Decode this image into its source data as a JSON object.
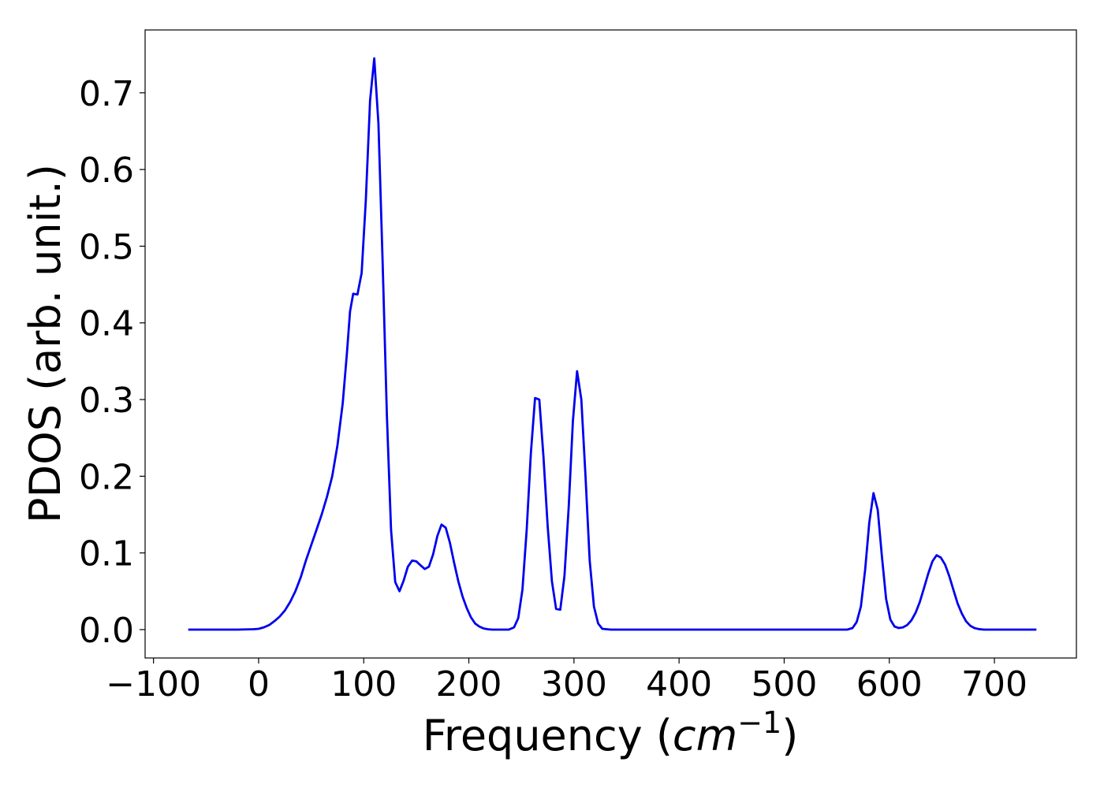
{
  "chart_data": {
    "type": "line",
    "title": "",
    "xlabel": "Frequency (",
    "xlabel_math": "cm",
    "xlabel_sup": "−1",
    "xlabel_close": ")",
    "ylabel": "PDOS (arb. unit.)",
    "xlim": [
      -108,
      778
    ],
    "ylim": [
      -0.037,
      0.782
    ],
    "grid": false,
    "x_ticks": [
      -100,
      0,
      100,
      200,
      300,
      400,
      500,
      600,
      700
    ],
    "x_tick_labels": [
      "−100",
      "0",
      "100",
      "200",
      "300",
      "400",
      "500",
      "600",
      "700"
    ],
    "y_ticks": [
      0.0,
      0.1,
      0.2,
      0.3,
      0.4,
      0.5,
      0.6,
      0.7
    ],
    "y_tick_labels": [
      "0.0",
      "0.1",
      "0.2",
      "0.3",
      "0.4",
      "0.5",
      "0.6",
      "0.7"
    ],
    "series": [
      {
        "color": "#0000ee",
        "x": [
          -67,
          -40,
          -20,
          -5,
          0,
          5,
          10,
          15,
          20,
          25,
          30,
          35,
          40,
          45,
          50,
          55,
          60,
          65,
          70,
          75,
          80,
          84,
          87,
          90,
          94,
          98,
          102,
          106,
          110,
          114,
          118,
          122,
          126,
          130,
          134,
          138,
          142,
          146,
          150,
          154,
          158,
          162,
          166,
          170,
          174,
          178,
          182,
          186,
          190,
          194,
          198,
          202,
          206,
          210,
          214,
          218,
          222,
          230,
          238,
          243,
          247,
          251,
          255,
          259,
          263,
          267,
          271,
          275,
          279,
          283,
          287,
          291,
          295,
          299,
          303,
          307,
          311,
          315,
          319,
          323,
          327,
          335,
          560,
          565,
          569,
          573,
          577,
          581,
          585,
          589,
          593,
          597,
          601,
          605,
          609,
          613,
          617,
          621,
          625,
          629,
          633,
          637,
          641,
          645,
          649,
          653,
          657,
          661,
          665,
          669,
          673,
          677,
          681,
          685,
          690,
          700,
          740
        ],
        "y": [
          0,
          0,
          0,
          0.0005,
          0.001,
          0.003,
          0.006,
          0.011,
          0.017,
          0.025,
          0.036,
          0.05,
          0.068,
          0.09,
          0.11,
          0.13,
          0.15,
          0.173,
          0.2,
          0.24,
          0.295,
          0.36,
          0.415,
          0.438,
          0.437,
          0.465,
          0.56,
          0.69,
          0.745,
          0.66,
          0.48,
          0.28,
          0.13,
          0.062,
          0.05,
          0.064,
          0.082,
          0.09,
          0.089,
          0.084,
          0.079,
          0.082,
          0.098,
          0.122,
          0.137,
          0.133,
          0.113,
          0.087,
          0.063,
          0.043,
          0.028,
          0.016,
          0.008,
          0.004,
          0.0015,
          0.0005,
          0,
          0,
          0,
          0.003,
          0.015,
          0.052,
          0.13,
          0.23,
          0.302,
          0.3,
          0.225,
          0.135,
          0.063,
          0.027,
          0.026,
          0.07,
          0.16,
          0.272,
          0.337,
          0.3,
          0.2,
          0.09,
          0.03,
          0.008,
          0.001,
          0,
          0,
          0.002,
          0.01,
          0.03,
          0.078,
          0.14,
          0.178,
          0.156,
          0.095,
          0.04,
          0.013,
          0.004,
          0.002,
          0.003,
          0.006,
          0.012,
          0.022,
          0.036,
          0.054,
          0.073,
          0.089,
          0.097,
          0.094,
          0.085,
          0.07,
          0.052,
          0.034,
          0.021,
          0.011,
          0.005,
          0.002,
          0.0007,
          0,
          0,
          0
        ]
      }
    ]
  }
}
